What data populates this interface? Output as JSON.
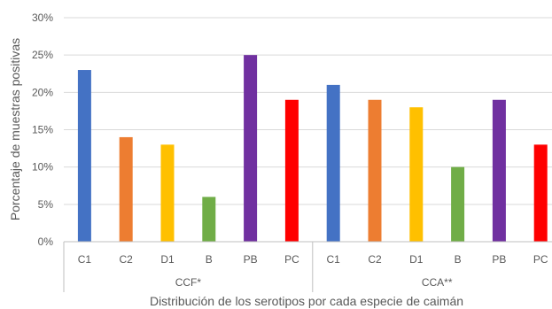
{
  "chart_data": {
    "type": "bar",
    "ylabel": "Porcentaje de muestras positivas",
    "xlabel": "Distribución de los serotipos por cada especie de caimán",
    "ylim": [
      0,
      30
    ],
    "yticks": [
      "0%",
      "5%",
      "10%",
      "15%",
      "20%",
      "25%",
      "30%"
    ],
    "grid": true,
    "groups": [
      {
        "name": "CCF*",
        "categories": [
          "C1",
          "C2",
          "D1",
          "B",
          "PB",
          "PC"
        ],
        "values": [
          23,
          14,
          13,
          6,
          25,
          19
        ]
      },
      {
        "name": "CCA**",
        "categories": [
          "C1",
          "C2",
          "D1",
          "B",
          "PB",
          "PC"
        ],
        "values": [
          21,
          19,
          18,
          10,
          19,
          13
        ]
      }
    ],
    "colors": [
      "#4472C4",
      "#ED7D31",
      "#FFC000",
      "#70AD47",
      "#7030A0",
      "#FF0000"
    ]
  }
}
